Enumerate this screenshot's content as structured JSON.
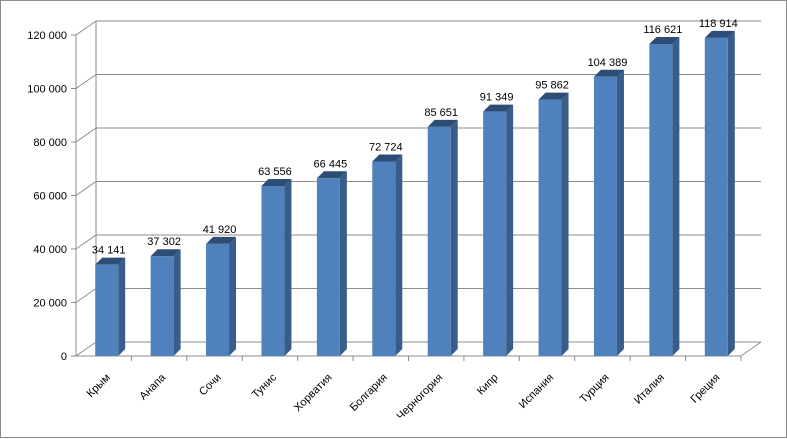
{
  "chart_data": {
    "type": "bar",
    "title": "",
    "xlabel": "",
    "ylabel": "",
    "categories": [
      "Крым",
      "Анапа",
      "Сочи",
      "Тунис",
      "Хорватия",
      "Болгария",
      "Черногория",
      "Кипр",
      "Испания",
      "Турция",
      "Италия",
      "Греция"
    ],
    "values": [
      34141,
      37302,
      41920,
      63556,
      66445,
      72724,
      85651,
      91349,
      95862,
      104389,
      116621,
      118914
    ],
    "value_labels": [
      "34 141",
      "37 302",
      "41 920",
      "63 556",
      "66 445",
      "72 724",
      "85 651",
      "91 349",
      "95 862",
      "104 389",
      "116 621",
      "118 914"
    ],
    "ylim": [
      0,
      120000
    ],
    "y_ticks": [
      "0",
      "20 000",
      "40 000",
      "60 000",
      "80 000",
      "100 000",
      "120 000"
    ],
    "grid": true,
    "legend": "none",
    "style": "3d-column",
    "colors": {
      "bar_front": "#4f81bd",
      "bar_side": "#385d8a",
      "bar_top": "#2c4d75",
      "grid": "#8c8c8c"
    }
  }
}
